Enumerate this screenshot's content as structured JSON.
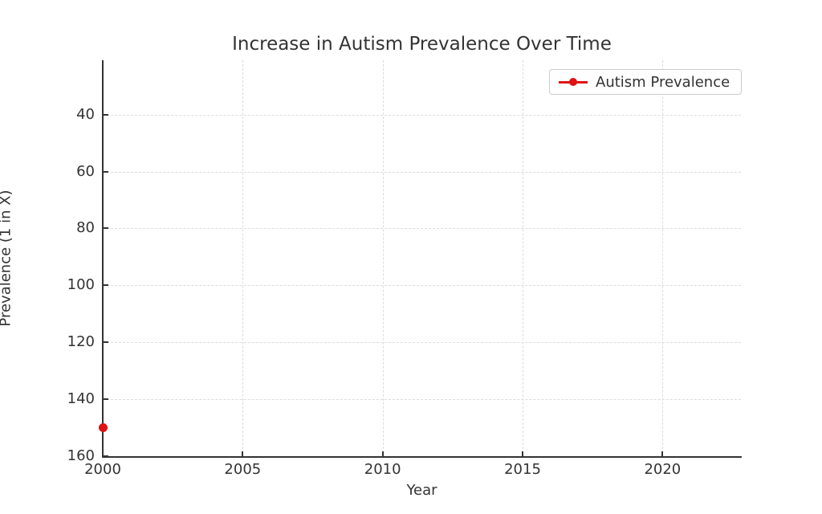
{
  "chart_data": {
    "type": "line",
    "title": "Increase in Autism Prevalence Over Time",
    "xlabel": "Year",
    "ylabel": "Prevalence (1 in X)",
    "x_ticks": [
      2000,
      2005,
      2010,
      2015,
      2020
    ],
    "y_ticks": [
      40,
      60,
      80,
      100,
      120,
      140,
      160
    ],
    "xlim": [
      2000,
      2022.8
    ],
    "ylim": [
      160.4,
      20.8
    ],
    "y_axis_inverted": true,
    "grid": true,
    "grid_style": "dashed",
    "legend_position": "upper right",
    "series": [
      {
        "name": "Autism Prevalence",
        "color": "#e01212",
        "marker": "circle",
        "points": [
          {
            "x": 2000,
            "y": 150
          }
        ]
      }
    ]
  },
  "colors": {
    "accent_red": "#e01212",
    "text": "#333333",
    "grid": "#dcdcdc",
    "legend_border": "#cccccc",
    "background": "#ffffff"
  }
}
